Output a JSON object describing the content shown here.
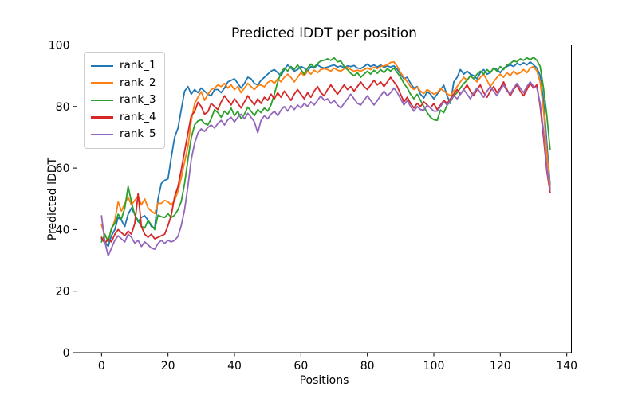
{
  "figure": {
    "background": "#ffffff",
    "axes_edge_color": "#000000",
    "text_color": "#000000",
    "legend_border_color": "#cccccc"
  },
  "chart_data": {
    "type": "line",
    "title": "Predicted lDDT per position",
    "xlabel": "Positions",
    "ylabel": "Predicted lDDT",
    "xlim": [
      -7.4,
      141.4
    ],
    "ylim": [
      0,
      100
    ],
    "xticks": [
      0,
      20,
      40,
      60,
      80,
      100,
      120,
      140
    ],
    "yticks": [
      0,
      20,
      40,
      60,
      80,
      100
    ],
    "grid": false,
    "legend_position": "upper left",
    "x_start": 0,
    "x_step": 1,
    "n_points": 136,
    "series": [
      {
        "name": "rank_1",
        "color": "#1f77b4",
        "values": [
          37,
          36,
          34.5,
          38,
          40,
          44,
          43,
          41,
          45,
          47,
          45,
          42.5,
          44,
          44.5,
          43,
          41,
          40.5,
          50,
          55,
          56,
          56.5,
          63.5,
          70,
          73,
          79,
          85,
          86.5,
          84,
          85.5,
          84.5,
          86,
          85,
          84,
          83.5,
          85.5,
          85.5,
          84.5,
          86,
          88,
          88.5,
          89,
          87.5,
          86,
          87.5,
          89.5,
          89,
          87.5,
          87,
          88.5,
          89.5,
          90.5,
          91.5,
          92,
          91,
          90,
          92,
          93.5,
          92.5,
          91.5,
          92,
          93,
          92.5,
          91.5,
          93,
          92.5,
          93.5,
          92.8,
          92.5,
          92.8,
          93.2,
          93.5,
          92.8,
          93.2,
          92.5,
          93.2,
          93,
          93.3,
          92.5,
          92.3,
          93,
          93.8,
          93,
          93.5,
          92.8,
          93.5,
          92.7,
          93.2,
          92.8,
          93.2,
          92,
          90.5,
          89,
          89.5,
          87.5,
          86,
          86.5,
          84,
          82.8,
          84.8,
          84,
          82.5,
          84,
          85.5,
          86.9,
          83.5,
          81,
          88,
          89.5,
          92,
          90.5,
          91.5,
          90.5,
          90,
          89,
          91,
          92,
          90.5,
          91,
          92.5,
          92,
          91,
          92.5,
          93,
          93.5,
          93,
          94,
          93.5,
          94.2,
          93.5,
          94.5,
          93.5,
          92.5,
          90,
          82,
          68,
          54.5
        ]
      },
      {
        "name": "rank_2",
        "color": "#ff7f0e",
        "values": [
          41.5,
          38,
          36.5,
          40,
          43,
          49,
          46,
          48.5,
          50.5,
          48,
          49.5,
          51,
          48,
          50,
          47,
          46,
          45.2,
          48.6,
          48.5,
          49.5,
          49,
          48,
          49.5,
          52.5,
          56.8,
          62,
          67,
          75.3,
          80.9,
          83,
          84.8,
          82,
          84,
          85.5,
          86,
          87,
          86.5,
          87.5,
          86,
          87,
          85.5,
          86.5,
          84.5,
          86,
          87.5,
          86.5,
          85.5,
          86.8,
          87,
          86.4,
          87.8,
          88.5,
          87.5,
          89,
          88,
          89.5,
          90.5,
          89.5,
          88,
          89.5,
          91,
          90,
          91.5,
          90.5,
          91.8,
          91,
          92,
          92.3,
          92,
          91.5,
          92.5,
          91.8,
          91.5,
          92.2,
          92.8,
          92,
          91.5,
          91.8,
          91.5,
          92,
          92.5,
          92,
          92.8,
          92.3,
          93,
          93.2,
          93.5,
          94.3,
          94.5,
          93,
          91,
          89.5,
          88,
          86.5,
          85.5,
          86.3,
          85,
          84.2,
          85.5,
          84.8,
          84,
          84.5,
          85.8,
          85,
          84.2,
          83.5,
          85,
          86.5,
          88,
          89.5,
          88.5,
          90,
          89,
          88,
          89.5,
          90.5,
          88.5,
          86.5,
          88,
          89.5,
          90.5,
          89.5,
          91,
          90,
          91.5,
          90.5,
          91,
          92,
          91,
          92.5,
          93,
          91.5,
          88,
          79,
          65,
          53.5
        ]
      },
      {
        "name": "rank_3",
        "color": "#2ca02c",
        "values": [
          36,
          38.5,
          36,
          40.5,
          42,
          45,
          43.5,
          47,
          54,
          49,
          44.7,
          43,
          41,
          40.5,
          43,
          41.5,
          40,
          44.7,
          44.2,
          43.9,
          45.2,
          43.9,
          44.7,
          46.5,
          49.1,
          55,
          62.8,
          69.8,
          74,
          75.3,
          75.7,
          74.5,
          74,
          76,
          79,
          78,
          76.5,
          78.5,
          77.5,
          79.5,
          77,
          78.5,
          76,
          77.5,
          79.8,
          78.5,
          77,
          79,
          78,
          79.5,
          78.5,
          80.5,
          84,
          88,
          91,
          92.5,
          91.5,
          93,
          92,
          93.5,
          92,
          90.5,
          92.5,
          93.8,
          92.8,
          94,
          94.8,
          95,
          95.5,
          95,
          95.8,
          94.5,
          94.8,
          93,
          92,
          90.8,
          90,
          91,
          89.5,
          90.5,
          91.5,
          90.5,
          91.8,
          90.8,
          92,
          91,
          92.3,
          91.5,
          92.5,
          91,
          89.5,
          87.5,
          86,
          84,
          82.5,
          84,
          82,
          80,
          78,
          76.5,
          75.7,
          75.5,
          78.8,
          78,
          80.5,
          81.5,
          83.5,
          84.5,
          86,
          87.5,
          88.5,
          90,
          89,
          90.5,
          91.5,
          90.5,
          92,
          91,
          92.5,
          91.5,
          93,
          92,
          93.5,
          94,
          94.8,
          94.5,
          95.5,
          95,
          95.8,
          95.2,
          96,
          95,
          93,
          86,
          77,
          66
        ]
      },
      {
        "name": "rank_4",
        "color": "#d62728",
        "values": [
          37.5,
          35.5,
          37,
          36,
          38.5,
          40,
          39,
          38,
          39.5,
          38.5,
          42,
          51.7,
          41,
          38.5,
          37.5,
          38.5,
          37,
          37.5,
          38,
          38.5,
          41.3,
          44.7,
          50.7,
          54,
          59.4,
          65.4,
          71.4,
          77,
          78.3,
          81.4,
          80,
          77.5,
          78.3,
          81,
          80,
          79,
          81.5,
          83.5,
          82,
          80.5,
          82.5,
          81,
          79.5,
          81.5,
          83.5,
          82,
          80.5,
          82.5,
          81,
          83,
          82,
          84,
          82.5,
          84.5,
          83,
          85,
          83.5,
          82,
          84,
          85.5,
          84,
          82.5,
          84.5,
          83,
          85,
          86.5,
          84.5,
          83.5,
          85.5,
          87,
          85.5,
          84,
          85.5,
          87,
          85.5,
          86.5,
          85,
          86.5,
          88,
          86.5,
          85.5,
          87,
          88.5,
          87,
          88,
          86.5,
          88,
          89.5,
          88,
          86.5,
          84,
          81.5,
          83,
          81,
          79.5,
          81,
          80,
          81.5,
          80.5,
          79.5,
          81,
          79,
          80.5,
          82,
          81,
          82.5,
          84,
          85.5,
          84,
          85.5,
          87,
          85,
          83.5,
          85.5,
          87,
          84.5,
          83,
          85,
          86.5,
          84.5,
          86,
          88,
          85.5,
          83.5,
          85.5,
          87,
          85,
          83.5,
          85.5,
          87.5,
          86,
          87,
          80,
          70,
          59,
          52
        ]
      },
      {
        "name": "rank_5",
        "color": "#9467bd",
        "values": [
          44.5,
          36,
          31.5,
          34,
          36.5,
          38,
          37,
          36,
          38.5,
          37.5,
          35.6,
          36.5,
          34.5,
          36,
          35,
          34,
          33.6,
          35.5,
          36.5,
          35.5,
          36.5,
          36,
          36.5,
          37.8,
          41.3,
          46.5,
          54.1,
          62.8,
          68,
          71.4,
          72.7,
          71.9,
          73.2,
          74,
          73,
          74.5,
          75.5,
          74,
          75.7,
          76.5,
          75,
          76.5,
          77.5,
          76,
          77.8,
          76.5,
          75,
          71.5,
          75.5,
          77,
          76,
          77.5,
          78.5,
          77,
          78.8,
          80,
          78.5,
          80.2,
          79,
          80.5,
          79.5,
          81,
          80,
          81.5,
          80.5,
          82,
          83.5,
          82,
          82.5,
          81,
          82,
          80.5,
          79.5,
          81,
          82.5,
          84,
          82.5,
          81,
          80.5,
          82,
          83.5,
          82,
          80.5,
          82,
          83.5,
          85,
          83.5,
          84.5,
          86,
          84.5,
          82.5,
          80.5,
          82,
          80,
          78.5,
          80,
          79,
          78.8,
          80.5,
          79.5,
          78.5,
          78.5,
          80,
          81.5,
          80.5,
          82,
          83.5,
          82.5,
          84,
          85.5,
          84,
          82.5,
          84.5,
          86,
          84.5,
          83,
          85,
          86.5,
          85,
          83.5,
          85.5,
          87,
          85,
          84,
          86,
          87.5,
          86,
          84.5,
          86.5,
          88,
          86.5,
          86,
          81,
          72,
          60,
          53
        ]
      }
    ]
  }
}
